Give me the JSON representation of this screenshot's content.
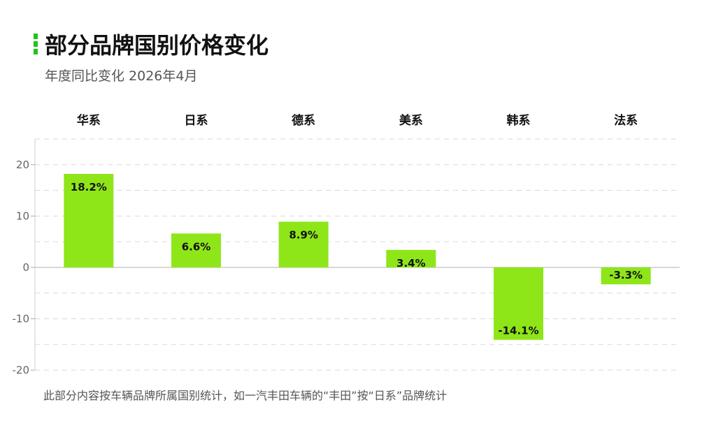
{
  "header": {
    "title": "部分品牌国别价格变化",
    "subtitle": "年度同比变化 2026年4月"
  },
  "footnote": "此部分内容按车辆品牌所属国别统计，如一汽丰田车辆的“丰田”按“日系”品牌统计",
  "colors": {
    "bar": "#8ee619",
    "accent": "#22c31b"
  },
  "chart_data": {
    "type": "bar",
    "categories": [
      "华系",
      "日系",
      "德系",
      "美系",
      "韩系",
      "法系"
    ],
    "values": [
      18.2,
      6.6,
      8.9,
      3.4,
      -14.1,
      -3.3
    ],
    "value_labels": [
      "18.2%",
      "6.6%",
      "8.9%",
      "3.4%",
      "-14.1%",
      "-3.3%"
    ],
    "yticks": [
      20,
      10,
      0,
      -10,
      -20
    ],
    "ytick_labels": [
      "20",
      "10",
      "0",
      "-10",
      "-20"
    ],
    "ylim": [
      -20,
      25
    ],
    "grid": true,
    "category_labels_position": "top"
  }
}
